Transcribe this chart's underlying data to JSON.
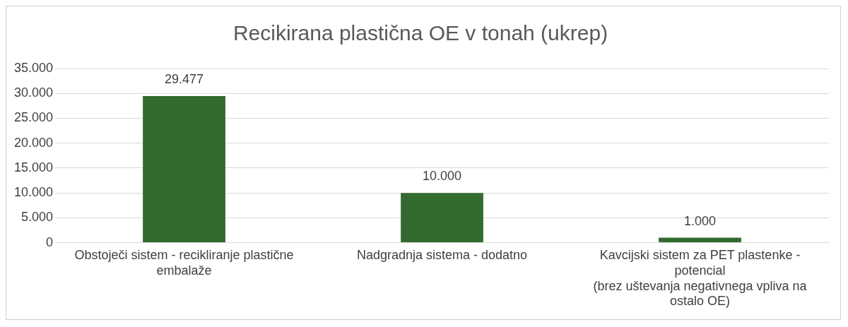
{
  "chart_data": {
    "type": "bar",
    "title": "Recikirana plastična OE v tonah (ukrep)",
    "categories": [
      "Obstoječi sistem - recikliranje plastične embalaže",
      "Nadgradnja sistema - dodatno",
      "Kavcijski sistem za PET plastenke - potencial\n(brez uštevanja negativnega vpliva na ostalo OE)"
    ],
    "values": [
      29477,
      10000,
      1000
    ],
    "value_labels": [
      "29.477",
      "10.000",
      "1.000"
    ],
    "color": "#336b2f",
    "ylim": [
      0,
      35000
    ],
    "yticks": [
      {
        "value": 0,
        "label": "0"
      },
      {
        "value": 5000,
        "label": "5.000"
      },
      {
        "value": 10000,
        "label": "10.000"
      },
      {
        "value": 15000,
        "label": "15.000"
      },
      {
        "value": 20000,
        "label": "20.000"
      },
      {
        "value": 25000,
        "label": "25.000"
      },
      {
        "value": 30000,
        "label": "30.000"
      },
      {
        "value": 35000,
        "label": "35.000"
      }
    ],
    "grid": "y"
  }
}
